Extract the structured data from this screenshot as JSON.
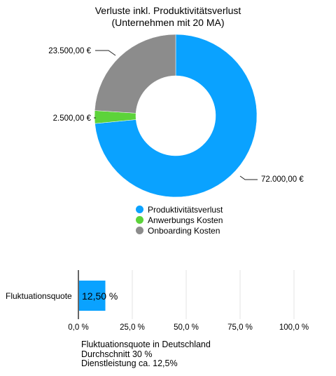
{
  "chart_data": [
    {
      "type": "pie",
      "title_line1": "Verluste inkl. Produktivitätsverlust",
      "title_line2": "(Unternehmen mit 20 MA)",
      "slices": [
        {
          "name": "Produktivitätsverlust",
          "value": 72000,
          "label": "72.000,00 €",
          "color": "#0aa2ff"
        },
        {
          "name": "Anwerbungs Kosten",
          "value": 2500,
          "label": "2.500,00 €",
          "color": "#5cd33a"
        },
        {
          "name": "Onboarding Kosten",
          "value": 23500,
          "label": "23.500,00 €",
          "color": "#8c8c8c"
        }
      ],
      "legend_position": "bottom"
    },
    {
      "type": "bar",
      "orientation": "horizontal",
      "categories": [
        "Fluktuationsquote"
      ],
      "values": [
        12.5
      ],
      "value_label": "12,50 %",
      "color": "#0aa2ff",
      "xlim": [
        0,
        100
      ],
      "ticks": [
        "0,0 %",
        "25,0 %",
        "50,0 %",
        "75,0 %",
        "100,0 %"
      ],
      "grid": true
    }
  ],
  "caption": {
    "line1": "Fluktuationsquote in Deutschland",
    "line2": "Durchschnitt 30 %",
    "line3": "Dienstleistung ca. 12,5%"
  }
}
